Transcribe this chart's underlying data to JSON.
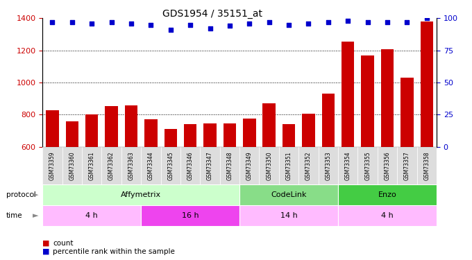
{
  "title": "GDS1954 / 35151_at",
  "samples": [
    "GSM73359",
    "GSM73360",
    "GSM73361",
    "GSM73362",
    "GSM73363",
    "GSM73344",
    "GSM73345",
    "GSM73346",
    "GSM73347",
    "GSM73348",
    "GSM73349",
    "GSM73350",
    "GSM73351",
    "GSM73352",
    "GSM73353",
    "GSM73354",
    "GSM73355",
    "GSM73356",
    "GSM73357",
    "GSM73358"
  ],
  "counts": [
    830,
    760,
    800,
    855,
    860,
    770,
    710,
    740,
    745,
    745,
    775,
    870,
    740,
    805,
    930,
    1255,
    1170,
    1205,
    1030,
    1380
  ],
  "percentile_ranks": [
    97,
    97,
    96,
    97,
    96,
    95,
    91,
    95,
    92,
    94,
    96,
    97,
    95,
    96,
    97,
    98,
    97,
    97,
    97,
    100
  ],
  "bar_color": "#cc0000",
  "dot_color": "#0000cc",
  "ylim_left": [
    600,
    1400
  ],
  "ylim_right": [
    0,
    100
  ],
  "yticks_left": [
    600,
    800,
    1000,
    1200,
    1400
  ],
  "yticks_right": [
    0,
    25,
    50,
    75,
    100
  ],
  "grid_values": [
    800,
    1000,
    1200
  ],
  "protocol_groups": [
    {
      "label": "Affymetrix",
      "start": 0,
      "end": 9,
      "color": "#ccffcc"
    },
    {
      "label": "CodeLink",
      "start": 10,
      "end": 14,
      "color": "#88dd88"
    },
    {
      "label": "Enzo",
      "start": 15,
      "end": 19,
      "color": "#44cc44"
    }
  ],
  "time_groups": [
    {
      "label": "4 h",
      "start": 0,
      "end": 4,
      "color": "#ffbbff"
    },
    {
      "label": "16 h",
      "start": 5,
      "end": 9,
      "color": "#ee44ee"
    },
    {
      "label": "14 h",
      "start": 10,
      "end": 14,
      "color": "#ffbbff"
    },
    {
      "label": "4 h",
      "start": 15,
      "end": 19,
      "color": "#ffbbff"
    }
  ],
  "bg_color": "#ffffff",
  "tick_label_color_left": "#cc0000",
  "tick_label_color_right": "#0000cc",
  "xlabel_bg": "#dddddd"
}
